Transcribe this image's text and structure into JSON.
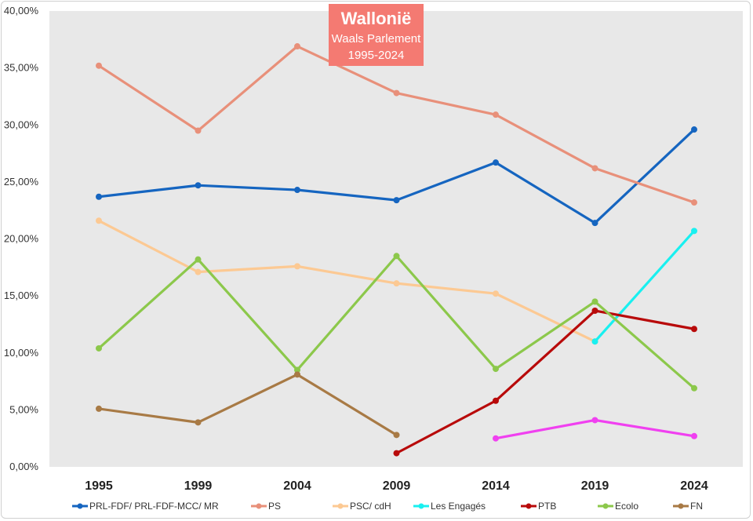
{
  "chart_data": {
    "type": "line",
    "title": "Wallonië",
    "subtitle": "Waals Parlement",
    "period": "1995-2024",
    "categories": [
      "1995",
      "1999",
      "2004",
      "2009",
      "2014",
      "2019",
      "2024"
    ],
    "ylim": [
      0,
      40
    ],
    "yticks": [
      0,
      5,
      10,
      15,
      20,
      25,
      30,
      35,
      40
    ],
    "ytick_labels": [
      "0,00%",
      "5,00%",
      "10,00%",
      "15,00%",
      "20,00%",
      "25,00%",
      "30,00%",
      "35,00%",
      "40,00%"
    ],
    "xlabel": "",
    "ylabel": "",
    "grid": false,
    "legend_position": "bottom",
    "series": [
      {
        "name": "PRL-FDF/ PRL-FDF-MCC/ MR",
        "color": "#1565c0",
        "values": [
          23.7,
          24.7,
          24.3,
          23.4,
          26.7,
          21.4,
          29.6
        ]
      },
      {
        "name": "PS",
        "color": "#e8907a",
        "values": [
          35.2,
          29.5,
          36.9,
          32.8,
          30.9,
          26.2,
          23.2
        ]
      },
      {
        "name": "PSC/ cdH",
        "color": "#fcc993",
        "values": [
          21.6,
          17.1,
          17.6,
          16.1,
          15.2,
          11.0,
          null
        ]
      },
      {
        "name": "Les Engagés",
        "color": "#19f0f0",
        "values": [
          null,
          null,
          null,
          null,
          null,
          11.0,
          20.7
        ]
      },
      {
        "name": "PTB",
        "color": "#b80a0a",
        "values": [
          null,
          null,
          null,
          1.2,
          5.8,
          13.7,
          12.1
        ]
      },
      {
        "name": "Ecolo",
        "color": "#8cc84b",
        "values": [
          10.4,
          18.2,
          8.5,
          18.5,
          8.6,
          14.5,
          6.9
        ]
      },
      {
        "name": "FN",
        "color": "#a87a45",
        "values": [
          5.1,
          3.9,
          8.1,
          2.8,
          null,
          null,
          null
        ]
      },
      {
        "name": "",
        "color": "#f040f0",
        "values": [
          null,
          null,
          null,
          null,
          2.5,
          4.1,
          2.7
        ]
      }
    ]
  }
}
